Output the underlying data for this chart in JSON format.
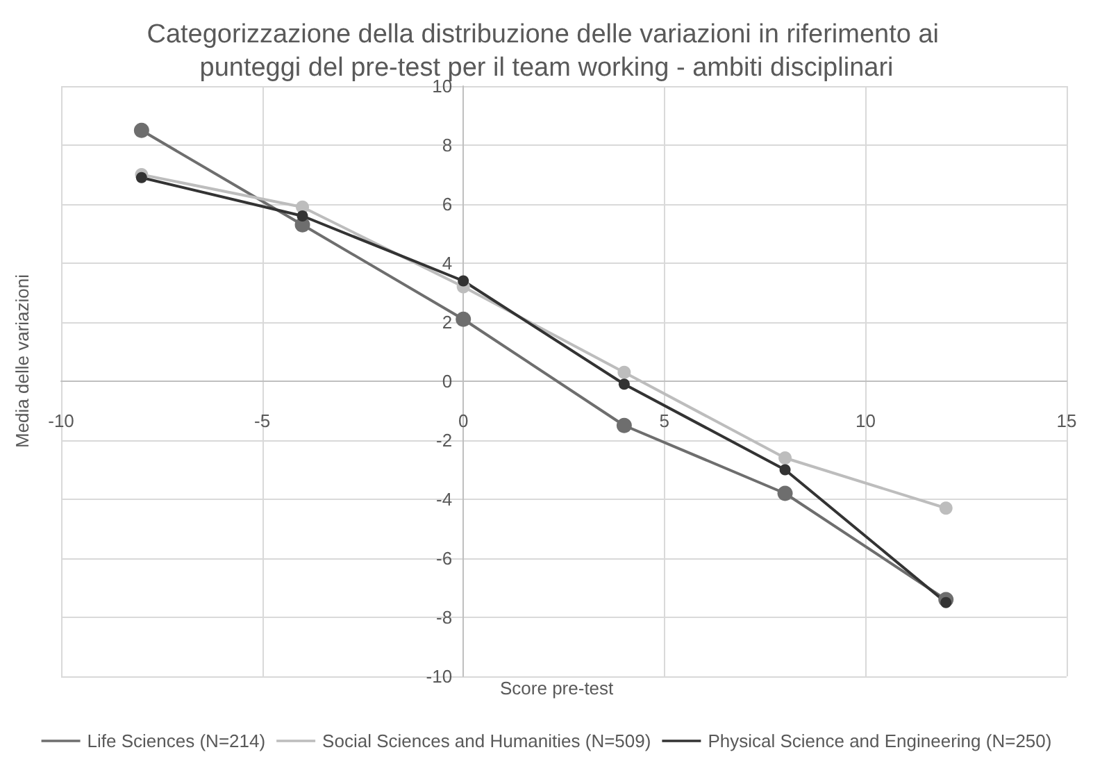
{
  "chart_data": {
    "type": "line",
    "title": "Categorizzazione della distribuzione delle variazioni in riferimento ai punteggi del pre-test per il team working - ambiti disciplinari",
    "xlabel": "Score pre-test",
    "ylabel": "Media delle variazioni",
    "x": [
      -8,
      -4,
      0,
      4,
      8,
      12
    ],
    "series": [
      {
        "name": "Life Sciences (N=214)",
        "color": "#6e6e6e",
        "values": [
          8.5,
          5.3,
          2.1,
          -1.5,
          -3.8,
          -7.4
        ]
      },
      {
        "name": "Social Sciences and Humanities (N=509)",
        "color": "#bdbdbd",
        "values": [
          7.0,
          5.9,
          3.2,
          0.3,
          -2.6,
          -4.3
        ]
      },
      {
        "name": "Physical Science and Engineering (N=250)",
        "color": "#333333",
        "values": [
          6.9,
          5.6,
          3.4,
          -0.1,
          -3.0,
          -7.5
        ]
      }
    ],
    "xlim": [
      -10,
      15
    ],
    "xticks": [
      -10,
      -5,
      0,
      5,
      10,
      15
    ],
    "ylim": [
      -10,
      10
    ],
    "yticks": [
      -10,
      -8,
      -6,
      -4,
      -2,
      0,
      2,
      4,
      6,
      8,
      10
    ],
    "grid": true,
    "legend": "bottom",
    "marker": "circle",
    "line_style": "solid"
  }
}
